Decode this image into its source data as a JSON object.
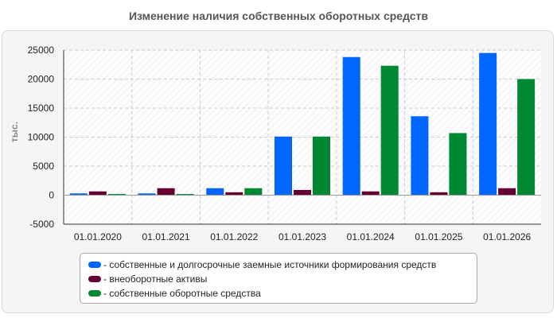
{
  "chart_data": {
    "type": "bar",
    "title": "Изменение наличия собственных оборотных средств",
    "ylabel": "тыс.",
    "xlabel": "",
    "ylim": [
      -5000,
      25000
    ],
    "yticks": [
      -5000,
      0,
      5000,
      10000,
      15000,
      20000,
      25000
    ],
    "grid": true,
    "legend_position": "bottom",
    "categories": [
      "01.01.2020",
      "01.01.2021",
      "01.01.2022",
      "01.01.2023",
      "01.01.2024",
      "01.01.2025",
      "01.01.2026"
    ],
    "series": [
      {
        "name": "собственные и долгосрочные заемные источники формирования средств",
        "color": "#0066ff",
        "values": [
          300,
          300,
          1200,
          10100,
          23800,
          13600,
          24500
        ]
      },
      {
        "name": "внеоборотные активы",
        "color": "#660033",
        "values": [
          650,
          1200,
          500,
          900,
          650,
          500,
          1200
        ]
      },
      {
        "name": "собственные оборотные средства",
        "color": "#008833",
        "values": [
          200,
          200,
          1200,
          10100,
          22300,
          10700,
          20000
        ]
      }
    ]
  }
}
